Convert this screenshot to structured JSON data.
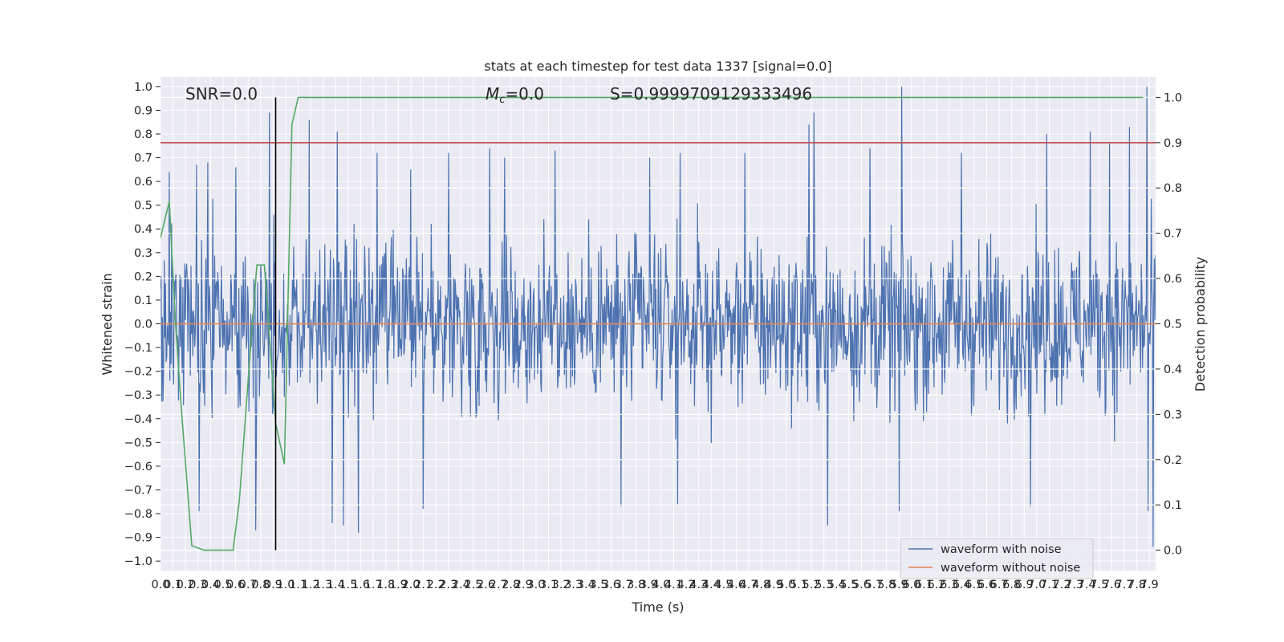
{
  "chart_data": {
    "type": "line",
    "title": "stats at each timestep for test data 1337 [signal=0.0]",
    "xlabel": "Time (s)",
    "ylabel": "Whitened strain",
    "y2label": "Detection probability",
    "xlim": [
      0.0,
      7.95
    ],
    "ylim": [
      -1.04,
      1.04
    ],
    "y2lim": [
      -0.045,
      1.045
    ],
    "x_ticks": [
      0.0,
      0.1,
      0.2,
      0.3,
      0.4,
      0.5,
      0.6,
      0.7,
      0.8,
      0.9,
      1.0,
      1.1,
      1.2,
      1.3,
      1.4,
      1.5,
      1.6,
      1.7,
      1.8,
      1.9,
      2.0,
      2.1,
      2.2,
      2.3,
      2.4,
      2.5,
      2.6,
      2.7,
      2.8,
      2.9,
      3.0,
      3.1,
      3.2,
      3.3,
      3.4,
      3.5,
      3.6,
      3.7,
      3.8,
      3.9,
      4.0,
      4.1,
      4.2,
      4.3,
      4.4,
      4.5,
      4.6,
      4.7,
      4.8,
      4.9,
      5.0,
      5.1,
      5.2,
      5.3,
      5.4,
      5.5,
      5.6,
      5.7,
      5.8,
      5.9,
      6.0,
      6.1,
      6.2,
      6.3,
      6.4,
      6.5,
      6.6,
      6.7,
      6.8,
      6.9,
      7.0,
      7.1,
      7.2,
      7.3,
      7.4,
      7.5,
      7.6,
      7.7,
      7.8,
      7.9
    ],
    "x_tick_labels": [
      "0.0",
      "0.1",
      "0.2",
      "0.3",
      "0.4",
      "0.5",
      "0.6",
      "0.7",
      "0.8",
      "0.9",
      "1.0",
      "1.1",
      "1.2",
      "1.3",
      "1.4",
      "1.5",
      "1.6",
      "1.7",
      "1.8",
      "1.9",
      "2.0",
      "2.1",
      "2.2",
      "2.3",
      "2.4",
      "2.5",
      "2.6",
      "2.7",
      "2.8",
      "2.9",
      "3.0",
      "3.1",
      "3.2",
      "3.3",
      "3.4",
      "3.5",
      "3.6",
      "3.7",
      "3.8",
      "3.9",
      "4.0",
      "4.1",
      "4.2",
      "4.3",
      "4.4",
      "4.5",
      "4.6",
      "4.7",
      "4.8",
      "4.9",
      "5.0",
      "5.1",
      "5.2",
      "5.3",
      "5.4",
      "5.5",
      "5.6",
      "5.7",
      "5.8",
      "5.9",
      "6.0",
      "6.1",
      "6.2",
      "6.3",
      "6.4",
      "6.5",
      "6.6",
      "6.7",
      "6.8",
      "6.9",
      "7.0",
      "7.1",
      "7.2",
      "7.3",
      "7.4",
      "7.5",
      "7.6",
      "7.7",
      "7.8",
      "7.9"
    ],
    "y_ticks": [
      -1.0,
      -0.9,
      -0.8,
      -0.7,
      -0.6,
      -0.5,
      -0.4,
      -0.3,
      -0.2,
      -0.1,
      0.0,
      0.1,
      0.2,
      0.3,
      0.4,
      0.5,
      0.6,
      0.7,
      0.8,
      0.9,
      1.0
    ],
    "y_tick_labels": [
      "−1.0",
      "−0.9",
      "−0.8",
      "−0.7",
      "−0.6",
      "−0.5",
      "−0.4",
      "−0.3",
      "−0.2",
      "−0.1",
      "0.0",
      "0.1",
      "0.2",
      "0.3",
      "0.4",
      "0.5",
      "0.6",
      "0.7",
      "0.8",
      "0.9",
      "1.0"
    ],
    "y2_ticks": [
      0.0,
      0.1,
      0.2,
      0.3,
      0.4,
      0.5,
      0.6,
      0.7,
      0.8,
      0.9,
      1.0
    ],
    "y2_tick_labels": [
      "0.0",
      "0.1",
      "0.2",
      "0.3",
      "0.4",
      "0.5",
      "0.6",
      "0.7",
      "0.8",
      "0.9",
      "1.0"
    ],
    "grid": true,
    "annotations": {
      "snr": "SNR=0.0",
      "mc_symbol": "M",
      "mc_sub": "c",
      "mc_value": "=0.0",
      "s_text": "S=0.9999709129333496"
    },
    "legend": {
      "placement": "lower-right",
      "entries": [
        {
          "label": "waveform with noise",
          "color": "#4c72b0"
        },
        {
          "label": "waveform without noise",
          "color": "#dd8452"
        }
      ]
    },
    "series": [
      {
        "name": "waveform with noise",
        "axis": "left",
        "color": "#4c72b0",
        "envelope_peaks_upper": [
          [
            0.07,
            0.64
          ],
          [
            0.29,
            0.67
          ],
          [
            0.38,
            0.68
          ],
          [
            0.6,
            0.66
          ],
          [
            0.87,
            0.89
          ],
          [
            1.19,
            0.86
          ],
          [
            1.41,
            0.81
          ],
          [
            1.73,
            0.72
          ],
          [
            2.0,
            0.65
          ],
          [
            2.3,
            0.72
          ],
          [
            2.63,
            0.74
          ],
          [
            2.75,
            0.7
          ],
          [
            3.15,
            0.73
          ],
          [
            3.91,
            0.7
          ],
          [
            4.15,
            0.72
          ],
          [
            4.67,
            0.72
          ],
          [
            5.18,
            0.84
          ],
          [
            5.22,
            0.89
          ],
          [
            5.67,
            0.74
          ],
          [
            5.92,
            1.0
          ],
          [
            6.4,
            0.72
          ],
          [
            7.08,
            0.8
          ],
          [
            7.43,
            0.81
          ],
          [
            7.58,
            0.76
          ],
          [
            7.74,
            0.83
          ],
          [
            7.88,
            1.0
          ]
        ],
        "envelope_peaks_lower": [
          [
            0.31,
            -0.79
          ],
          [
            0.76,
            -0.87
          ],
          [
            1.37,
            -0.84
          ],
          [
            1.46,
            -0.85
          ],
          [
            1.58,
            -0.88
          ],
          [
            2.1,
            -0.78
          ],
          [
            3.68,
            -0.77
          ],
          [
            4.13,
            -0.76
          ],
          [
            5.33,
            -0.85
          ],
          [
            5.9,
            -0.79
          ],
          [
            6.95,
            -0.77
          ],
          [
            7.89,
            -0.79
          ],
          [
            7.93,
            -0.94
          ]
        ],
        "typical_range": [
          -0.45,
          0.45
        ]
      },
      {
        "name": "waveform without noise",
        "axis": "left",
        "color": "#dd8452",
        "x": [
          0.0,
          7.95
        ],
        "y": [
          0.0,
          0.0
        ]
      },
      {
        "name": "",
        "axis": "right",
        "color": "#55a868",
        "x": [
          0.0,
          0.07,
          0.12,
          0.17,
          0.25,
          0.35,
          0.44,
          0.53,
          0.58,
          0.63,
          0.72,
          0.77,
          0.83,
          0.92,
          0.99,
          1.05,
          1.1,
          1.16,
          1.24,
          1.3,
          7.85
        ],
        "y": [
          0.69,
          0.77,
          0.5,
          0.3,
          0.01,
          0.0,
          0.0,
          0.0,
          0.0,
          0.11,
          0.45,
          0.63,
          0.63,
          0.28,
          0.19,
          0.94,
          1.0,
          1.0,
          1.0,
          1.0,
          1.0
        ]
      },
      {
        "name": "",
        "axis": "right",
        "color": "#c44e52",
        "x": [
          0.0,
          7.95
        ],
        "y": [
          0.9,
          0.9
        ]
      }
    ],
    "vertical_marker": {
      "x": 0.92,
      "y2_range": [
        0.0,
        1.0
      ],
      "color": "#000000"
    }
  }
}
